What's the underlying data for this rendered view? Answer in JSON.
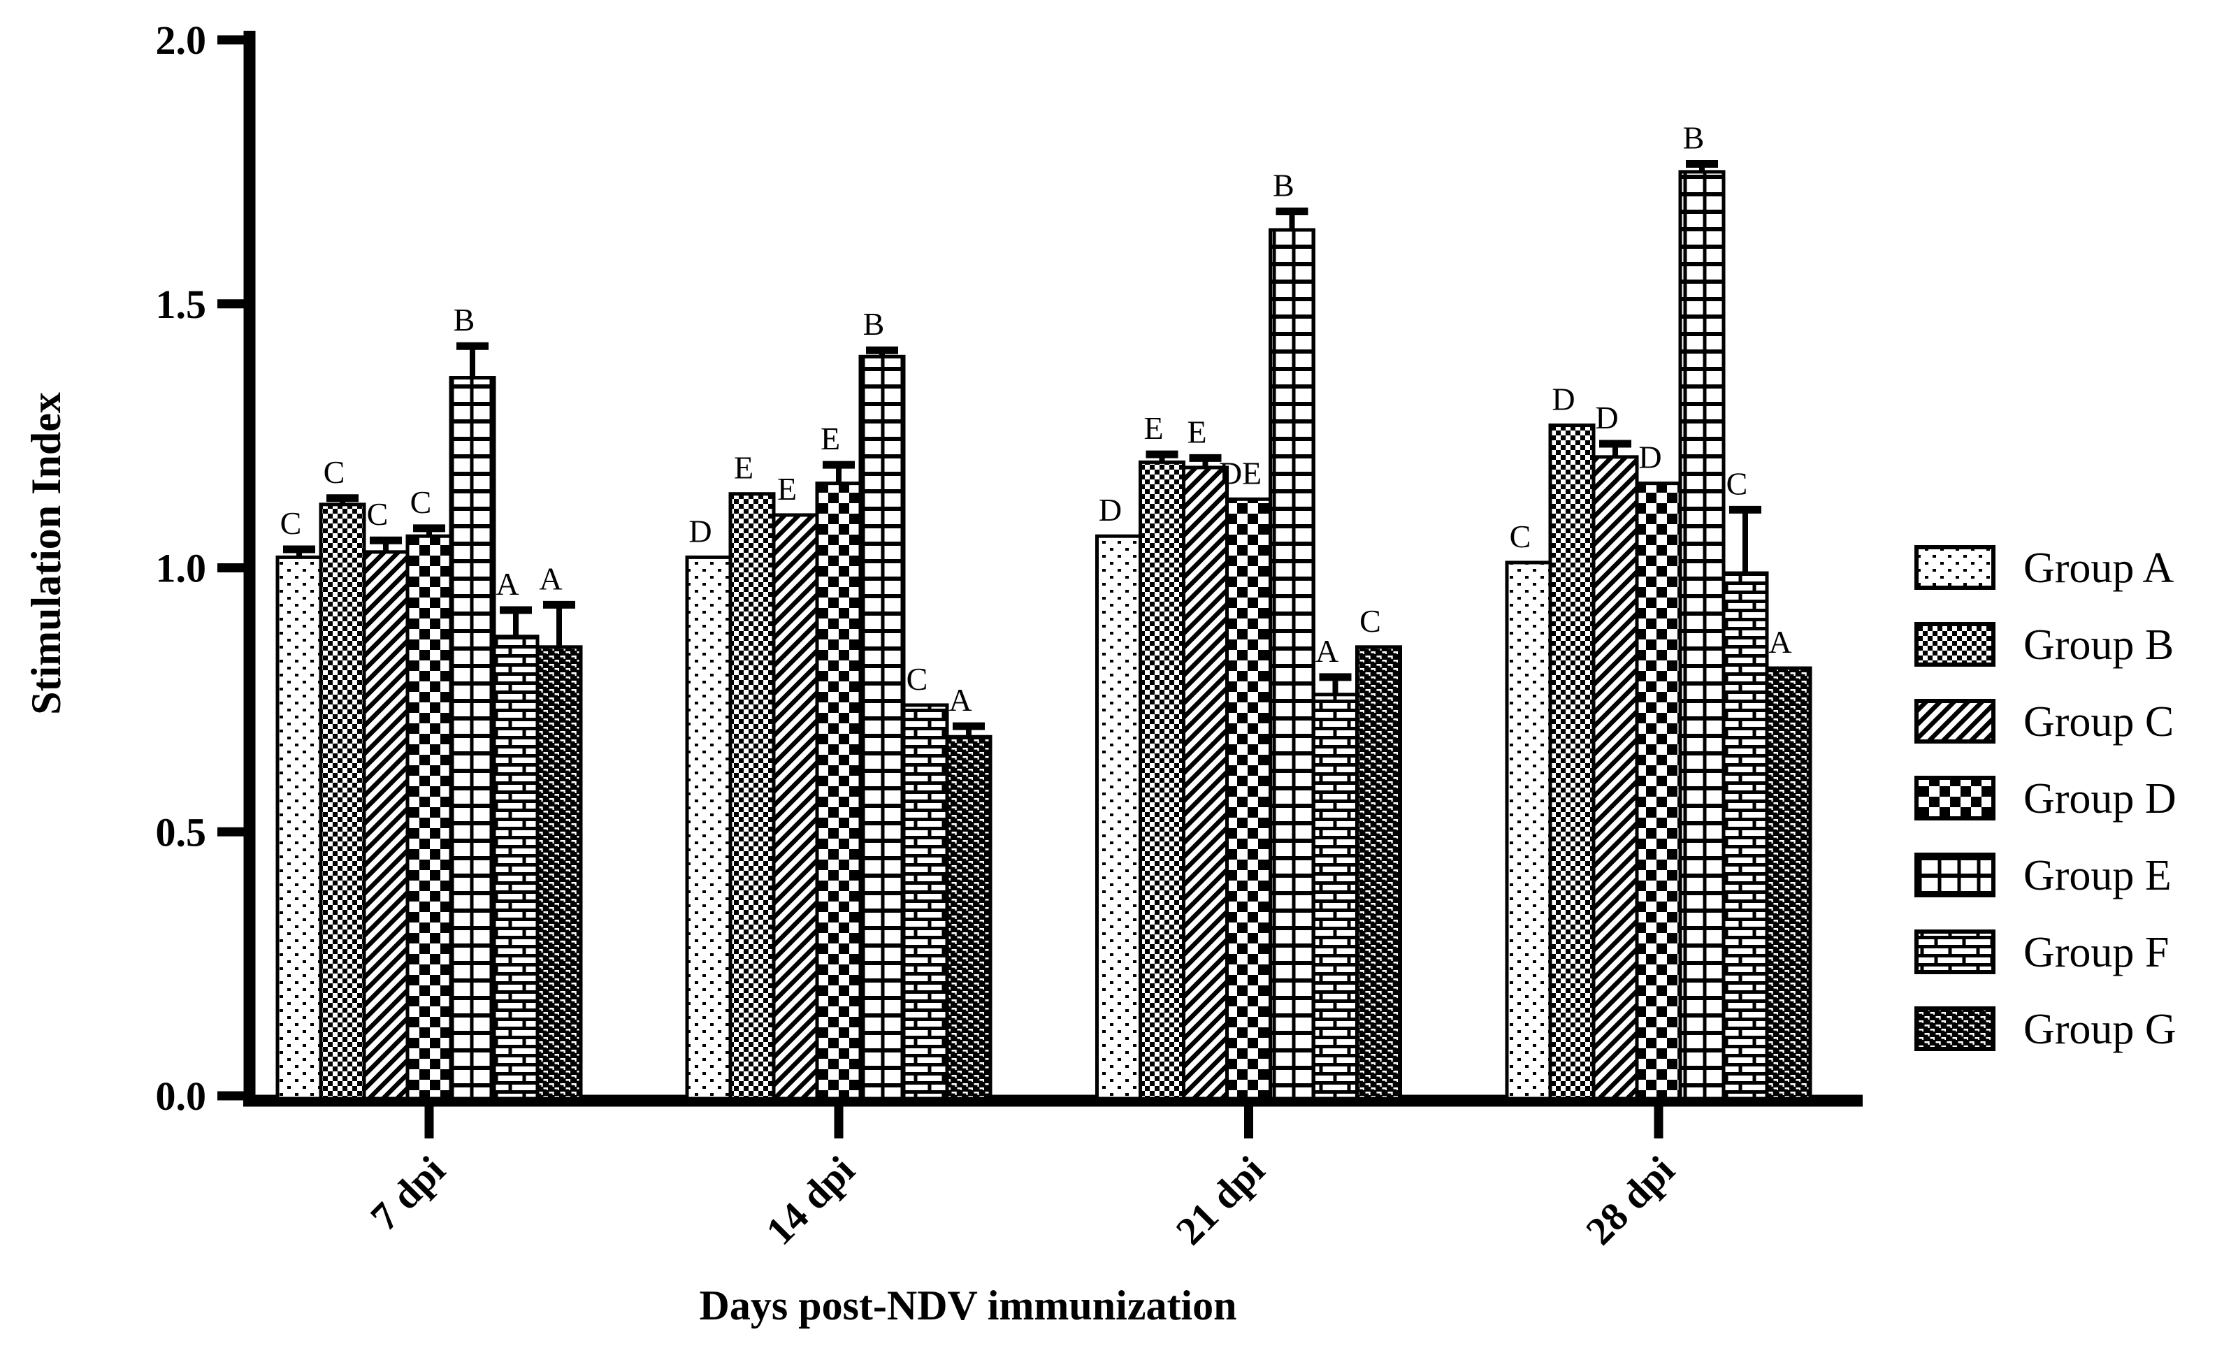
{
  "chart_data": {
    "type": "bar",
    "title": "",
    "xlabel": "Days post-NDV immunization",
    "ylabel": "Stimulation  Index",
    "categories": [
      "7 dpi",
      "14 dpi",
      "21 dpi",
      "28 dpi"
    ],
    "ylim": [
      0.0,
      2.0
    ],
    "yticks": [
      0.0,
      0.5,
      1.0,
      1.5,
      2.0
    ],
    "ytick_labels": [
      "0.0",
      "0.5",
      "1.0",
      "1.5",
      "2.0"
    ],
    "grid": false,
    "legend_position": "right",
    "bar_fill_style": "black-white-patterns",
    "colors": {
      "foreground": "#000000",
      "background": "#ffffff"
    },
    "series": [
      {
        "name": "Group A",
        "pattern": "dots",
        "values": [
          1.02,
          1.02,
          1.06,
          1.01
        ],
        "errors": [
          0.015,
          0,
          0,
          0
        ],
        "letters": [
          "C",
          "D",
          "D",
          "C"
        ]
      },
      {
        "name": "Group B",
        "pattern": "fine-checker",
        "values": [
          1.12,
          1.14,
          1.2,
          1.27
        ],
        "errors": [
          0.012,
          0,
          0.015,
          0
        ],
        "letters": [
          "C",
          "E",
          "E",
          "D"
        ]
      },
      {
        "name": "Group C",
        "pattern": "diagonal-stripes",
        "values": [
          1.03,
          1.1,
          1.19,
          1.21
        ],
        "errors": [
          0.022,
          0,
          0.018,
          0.025
        ],
        "letters": [
          "C",
          "E",
          "E",
          "D"
        ]
      },
      {
        "name": "Group D",
        "pattern": "checkerboard",
        "values": [
          1.06,
          1.16,
          1.13,
          1.16
        ],
        "errors": [
          0.015,
          0.035,
          0,
          0
        ],
        "letters": [
          "C",
          "E",
          "DE",
          "D"
        ]
      },
      {
        "name": "Group E",
        "pattern": "grid",
        "values": [
          1.36,
          1.4,
          1.64,
          1.75
        ],
        "errors": [
          0.06,
          0.012,
          0.035,
          0.015
        ],
        "letters": [
          "B",
          "B",
          "B",
          "B"
        ]
      },
      {
        "name": "Group F",
        "pattern": "bricks",
        "values": [
          0.87,
          0.74,
          0.76,
          0.99
        ],
        "errors": [
          0.05,
          0,
          0.033,
          0.12
        ],
        "letters": [
          "A",
          "C",
          "A",
          "C"
        ]
      },
      {
        "name": "Group G",
        "pattern": "dense-weave",
        "values": [
          0.85,
          0.68,
          0.85,
          0.81
        ],
        "errors": [
          0.08,
          0.02,
          0,
          0
        ],
        "letters": [
          "A",
          "A",
          "C",
          "A"
        ]
      }
    ],
    "legend_items": [
      "Group A",
      "Group B",
      "Group C",
      "Group D",
      "Group E",
      "Group F",
      "Group G"
    ]
  }
}
